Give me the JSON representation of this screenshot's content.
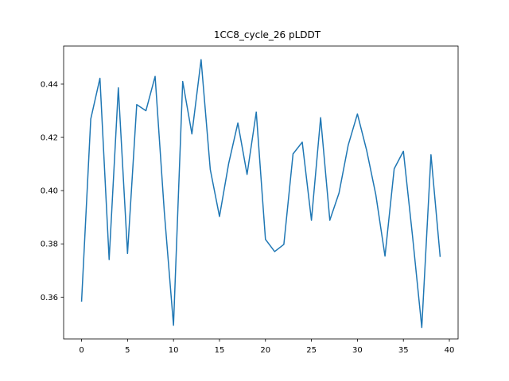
{
  "chart_data": {
    "type": "line",
    "title": "1CC8_cycle_26 pLDDT",
    "xlabel": "",
    "ylabel": "",
    "xlim": [
      -1.95,
      40.95
    ],
    "ylim": [
      0.3443,
      0.4543
    ],
    "xticks": [
      0,
      5,
      10,
      15,
      20,
      25,
      30,
      35,
      40
    ],
    "yticks": [
      0.36,
      0.38,
      0.4,
      0.42,
      0.44
    ],
    "ytick_labels": [
      "0.36",
      "0.38",
      "0.40",
      "0.42",
      "0.44"
    ],
    "grid": false,
    "line_color": "#1f77b4",
    "series": [
      {
        "x": [
          0,
          1,
          2,
          3,
          4,
          5,
          6,
          7,
          8,
          9,
          10,
          11,
          12,
          13,
          14,
          15,
          16,
          17,
          18,
          19,
          20,
          21,
          22,
          23,
          24,
          25,
          26,
          27,
          28,
          29,
          30,
          31,
          32,
          33,
          34,
          35,
          36,
          37,
          38,
          39
        ],
        "values": [
          0.3583,
          0.4269,
          0.4422,
          0.3741,
          0.4386,
          0.3764,
          0.4323,
          0.43,
          0.4429,
          0.392,
          0.3494,
          0.441,
          0.4213,
          0.4492,
          0.4079,
          0.3903,
          0.4102,
          0.4254,
          0.4061,
          0.4295,
          0.3817,
          0.3771,
          0.3798,
          0.4138,
          0.4182,
          0.3889,
          0.4274,
          0.3889,
          0.3991,
          0.4171,
          0.4288,
          0.4152,
          0.3985,
          0.3754,
          0.4082,
          0.4148,
          0.3827,
          0.3486,
          0.4135,
          0.3751
        ]
      }
    ]
  }
}
